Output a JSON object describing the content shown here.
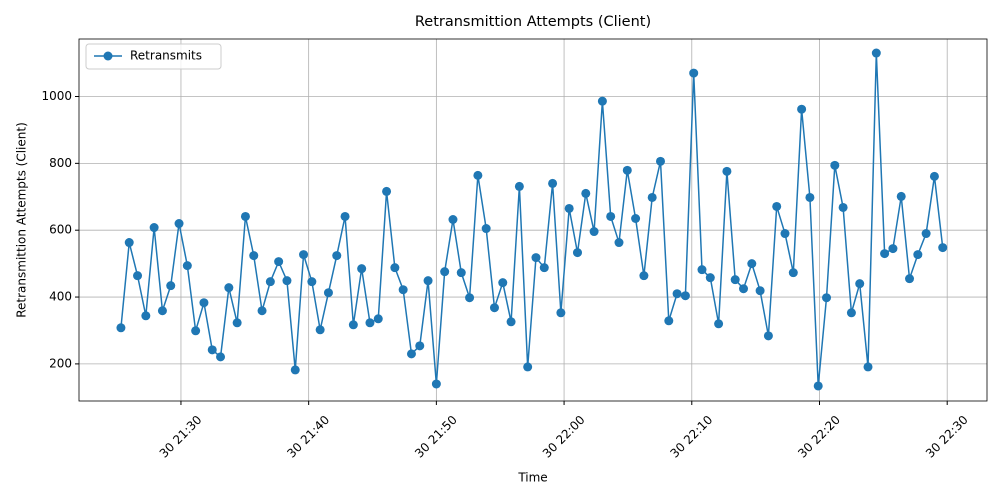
{
  "chart_data": {
    "type": "line",
    "title": "Retransmittion Attempts (Client)",
    "x_label": "Time",
    "y_label": "Retransmittion Attempts (Client)",
    "legend": "upper left",
    "grid": true,
    "x": [
      "30 21:25:18",
      "30 21:25:57",
      "30 21:26:36",
      "30 21:27:15",
      "30 21:27:54",
      "30 21:28:33",
      "30 21:29:12",
      "30 21:29:51",
      "30 21:30:30",
      "30 21:31:09",
      "30 21:31:48",
      "30 21:32:27",
      "30 21:33:06",
      "30 21:33:45",
      "30 21:34:24",
      "30 21:35:03",
      "30 21:35:42",
      "30 21:36:21",
      "30 21:37:00",
      "30 21:37:39",
      "30 21:38:18",
      "30 21:38:57",
      "30 21:39:36",
      "30 21:40:15",
      "30 21:40:54",
      "30 21:41:33",
      "30 21:42:12",
      "30 21:42:51",
      "30 21:43:30",
      "30 21:44:09",
      "30 21:44:48",
      "30 21:45:27",
      "30 21:46:06",
      "30 21:46:45",
      "30 21:47:24",
      "30 21:48:03",
      "30 21:48:42",
      "30 21:49:21",
      "30 21:50:00",
      "30 21:50:39",
      "30 21:51:18",
      "30 21:51:57",
      "30 21:52:36",
      "30 21:53:15",
      "30 21:53:54",
      "30 21:54:33",
      "30 21:55:12",
      "30 21:55:51",
      "30 21:56:30",
      "30 21:57:09",
      "30 21:57:48",
      "30 21:58:27",
      "30 21:59:06",
      "30 21:59:45",
      "30 22:00:24",
      "30 22:01:03",
      "30 22:01:42",
      "30 22:02:21",
      "30 22:03:00",
      "30 22:03:39",
      "30 22:04:18",
      "30 22:04:57",
      "30 22:05:36",
      "30 22:06:15",
      "30 22:06:54",
      "30 22:07:33",
      "30 22:08:12",
      "30 22:08:51",
      "30 22:09:30",
      "30 22:10:09",
      "30 22:10:48",
      "30 22:11:27",
      "30 22:12:06",
      "30 22:12:45",
      "30 22:13:24",
      "30 22:14:03",
      "30 22:14:42",
      "30 22:15:21",
      "30 22:16:00",
      "30 22:16:39",
      "30 22:17:18",
      "30 22:17:57",
      "30 22:18:36",
      "30 22:19:15",
      "30 22:19:54",
      "30 22:20:33",
      "30 22:21:12",
      "30 22:21:51",
      "30 22:22:30",
      "30 22:23:09",
      "30 22:23:48",
      "30 22:24:27",
      "30 22:25:06",
      "30 22:25:45",
      "30 22:26:24",
      "30 22:27:03",
      "30 22:27:42",
      "30 22:28:21",
      "30 22:29:00",
      "30 22:29:39"
    ],
    "series": [
      {
        "name": "Retransmits",
        "color": "#1f77b4",
        "values": [
          308,
          563,
          464,
          344,
          608,
          359,
          434,
          620,
          494,
          299,
          383,
          242,
          221,
          428,
          323,
          641,
          524,
          359,
          446,
          506,
          449,
          182,
          527,
          446,
          302,
          413,
          524,
          641,
          317,
          485,
          323,
          335,
          716,
          488,
          422,
          230,
          254,
          449,
          140,
          476,
          632,
          473,
          398,
          764,
          605,
          368,
          443,
          326,
          731,
          191,
          518,
          488,
          740,
          353,
          665,
          533,
          710,
          596,
          986,
          641,
          563,
          779,
          635,
          464,
          698,
          806,
          329,
          410,
          404,
          1070,
          482,
          458,
          320,
          776,
          452,
          425,
          500,
          419,
          284,
          671,
          590,
          473,
          962,
          698,
          134,
          398,
          794,
          668,
          353,
          440,
          191,
          1130,
          530,
          545,
          701,
          455,
          527,
          590,
          761,
          548
        ]
      }
    ],
    "xlim": [
      "30 21:22:01",
      "30 22:33:07"
    ],
    "xticks": [
      {
        "value": "30 21:30:00",
        "label": "30 21:30"
      },
      {
        "value": "30 21:40:00",
        "label": "30 21:40"
      },
      {
        "value": "30 21:50:00",
        "label": "30 21:50"
      },
      {
        "value": "30 22:00:00",
        "label": "30 22:00"
      },
      {
        "value": "30 22:10:00",
        "label": "30 22:10"
      },
      {
        "value": "30 22:20:00",
        "label": "30 22:20"
      },
      {
        "value": "30 22:30:00",
        "label": "30 22:30"
      }
    ],
    "ylim": [
      89,
      1172
    ],
    "yticks": [
      200,
      400,
      600,
      800,
      1000
    ]
  }
}
